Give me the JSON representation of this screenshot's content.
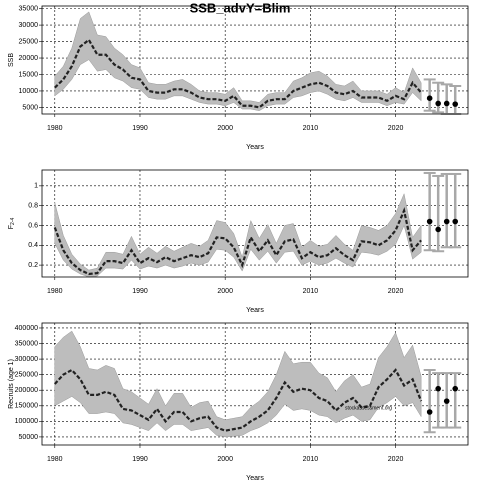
{
  "chart_data": [
    {
      "type": "line",
      "title": "SSB_advY=Blim",
      "xlabel": "Years",
      "ylabel": "SSB",
      "xlim": [
        1978.5,
        2028.5
      ],
      "xticks": [
        1980,
        1990,
        2000,
        2010,
        2020
      ],
      "ylim": [
        3000,
        35800
      ],
      "yticks": [
        5000,
        10000,
        15000,
        20000,
        25000,
        30000,
        35000
      ],
      "grid": true,
      "line_color": "#222222",
      "band_color": "#bdbdbd",
      "bar_color": "#a8a8a8",
      "x": [
        1980,
        1981,
        1982,
        1983,
        1984,
        1985,
        1986,
        1987,
        1988,
        1989,
        1990,
        1991,
        1992,
        1993,
        1994,
        1995,
        1996,
        1997,
        1998,
        1999,
        2000,
        2001,
        2002,
        2003,
        2004,
        2005,
        2006,
        2007,
        2008,
        2009,
        2010,
        2011,
        2012,
        2013,
        2014,
        2015,
        2016,
        2017,
        2018,
        2019,
        2020,
        2021,
        2022,
        2023
      ],
      "values": [
        11000,
        13500,
        17500,
        23500,
        25500,
        21000,
        21000,
        18000,
        16500,
        14000,
        13500,
        10000,
        9500,
        9500,
        10500,
        10500,
        9500,
        8000,
        7500,
        7500,
        7000,
        8500,
        5500,
        5500,
        5000,
        7000,
        7500,
        7500,
        10000,
        11000,
        12000,
        12500,
        11500,
        9500,
        9000,
        10000,
        8000,
        8000,
        8000,
        7000,
        8500,
        7500,
        12500,
        9500
      ],
      "lower": [
        8500,
        10500,
        13500,
        18000,
        19500,
        16000,
        16500,
        14000,
        13000,
        11000,
        10500,
        8000,
        7500,
        7500,
        8500,
        8500,
        7500,
        6500,
        6000,
        6000,
        5500,
        6500,
        4500,
        4500,
        4000,
        5500,
        6000,
        6000,
        8000,
        8500,
        9500,
        10000,
        9000,
        7500,
        7000,
        8000,
        6500,
        6500,
        6500,
        5500,
        6500,
        6000,
        9500,
        7000
      ],
      "upper": [
        14500,
        17500,
        23000,
        32000,
        34000,
        27000,
        26500,
        23000,
        21000,
        18000,
        17000,
        12500,
        12000,
        12000,
        13000,
        13500,
        12000,
        10000,
        9500,
        9500,
        9000,
        11000,
        7000,
        7000,
        6500,
        9000,
        9500,
        9500,
        13000,
        14000,
        15500,
        16000,
        14500,
        12000,
        11500,
        13000,
        10000,
        10000,
        10000,
        9000,
        11000,
        9500,
        17000,
        12500
      ],
      "projection": {
        "x": [
          2024,
          2025,
          2026,
          2027
        ],
        "values": [
          7800,
          6200,
          6200,
          6000
        ],
        "lower": [
          4000,
          3500,
          3000,
          3000
        ],
        "upper": [
          13500,
          12500,
          12000,
          11500
        ]
      }
    },
    {
      "type": "line",
      "xlabel": "Years",
      "ylabel": "F",
      "ylabel_subscript": "2-4",
      "xlim": [
        1978.5,
        2028.5
      ],
      "xticks": [
        1980,
        1990,
        2000,
        2010,
        2020
      ],
      "ylim": [
        0.08,
        1.16
      ],
      "yticks": [
        0.2,
        0.4,
        0.6,
        0.8,
        1.0
      ],
      "grid": true,
      "line_color": "#222222",
      "band_color": "#bdbdbd",
      "bar_color": "#a8a8a8",
      "x": [
        1980,
        1981,
        1982,
        1983,
        1984,
        1985,
        1986,
        1987,
        1988,
        1989,
        1990,
        1991,
        1992,
        1993,
        1994,
        1995,
        1996,
        1997,
        1998,
        1999,
        2000,
        2001,
        2002,
        2003,
        2004,
        2005,
        2006,
        2007,
        2008,
        2009,
        2010,
        2011,
        2012,
        2013,
        2014,
        2015,
        2016,
        2017,
        2018,
        2019,
        2020,
        2021,
        2022,
        2023
      ],
      "values": [
        0.58,
        0.35,
        0.22,
        0.15,
        0.11,
        0.12,
        0.24,
        0.24,
        0.22,
        0.35,
        0.22,
        0.27,
        0.23,
        0.28,
        0.24,
        0.27,
        0.3,
        0.28,
        0.32,
        0.48,
        0.47,
        0.38,
        0.2,
        0.48,
        0.34,
        0.45,
        0.3,
        0.44,
        0.46,
        0.27,
        0.33,
        0.28,
        0.3,
        0.37,
        0.3,
        0.25,
        0.44,
        0.43,
        0.4,
        0.45,
        0.55,
        0.75,
        0.35,
        0.45
      ],
      "lower": [
        0.42,
        0.25,
        0.16,
        0.11,
        0.08,
        0.09,
        0.17,
        0.17,
        0.16,
        0.25,
        0.16,
        0.19,
        0.17,
        0.2,
        0.17,
        0.19,
        0.22,
        0.2,
        0.23,
        0.36,
        0.35,
        0.28,
        0.14,
        0.36,
        0.25,
        0.34,
        0.22,
        0.33,
        0.34,
        0.2,
        0.24,
        0.2,
        0.22,
        0.27,
        0.22,
        0.18,
        0.33,
        0.32,
        0.3,
        0.34,
        0.41,
        0.6,
        0.26,
        0.33
      ],
      "upper": [
        0.83,
        0.5,
        0.31,
        0.21,
        0.15,
        0.17,
        0.33,
        0.33,
        0.31,
        0.49,
        0.31,
        0.38,
        0.32,
        0.39,
        0.34,
        0.38,
        0.42,
        0.39,
        0.45,
        0.65,
        0.63,
        0.52,
        0.28,
        0.65,
        0.47,
        0.61,
        0.42,
        0.6,
        0.62,
        0.38,
        0.45,
        0.39,
        0.41,
        0.5,
        0.41,
        0.35,
        0.6,
        0.58,
        0.55,
        0.6,
        0.72,
        0.92,
        0.48,
        0.6
      ],
      "projection": {
        "x": [
          2024,
          2025,
          2026,
          2027
        ],
        "values": [
          0.64,
          0.56,
          0.64,
          0.64
        ],
        "lower": [
          0.35,
          0.34,
          0.38,
          0.38
        ],
        "upper": [
          1.13,
          1.1,
          1.12,
          1.12
        ]
      }
    },
    {
      "type": "line",
      "xlabel": "Years",
      "ylabel": "Recruits (age 1)",
      "annotation": "stockassessment.org",
      "xlim": [
        1978.5,
        2028.5
      ],
      "xticks": [
        1980,
        1990,
        2000,
        2010,
        2020
      ],
      "ylim": [
        24000,
        416000
      ],
      "yticks": [
        50000,
        100000,
        150000,
        200000,
        250000,
        300000,
        350000,
        400000
      ],
      "grid": true,
      "line_color": "#222222",
      "band_color": "#bdbdbd",
      "bar_color": "#a8a8a8",
      "x": [
        1980,
        1981,
        1982,
        1983,
        1984,
        1985,
        1986,
        1987,
        1988,
        1989,
        1990,
        1991,
        1992,
        1993,
        1994,
        1995,
        1996,
        1997,
        1998,
        1999,
        2000,
        2001,
        2002,
        2003,
        2004,
        2005,
        2006,
        2007,
        2008,
        2009,
        2010,
        2011,
        2012,
        2013,
        2014,
        2015,
        2016,
        2017,
        2018,
        2019,
        2020,
        2021,
        2022,
        2023
      ],
      "values": [
        220000,
        250000,
        265000,
        235000,
        185000,
        185000,
        195000,
        185000,
        140000,
        135000,
        120000,
        105000,
        140000,
        100000,
        130000,
        130000,
        100000,
        110000,
        115000,
        80000,
        70000,
        75000,
        80000,
        100000,
        115000,
        135000,
        175000,
        225000,
        195000,
        205000,
        200000,
        175000,
        165000,
        135000,
        160000,
        175000,
        145000,
        150000,
        210000,
        235000,
        265000,
        215000,
        235000,
        165000
      ],
      "lower": [
        150000,
        165000,
        180000,
        160000,
        125000,
        125000,
        130000,
        125000,
        95000,
        90000,
        80000,
        70000,
        95000,
        70000,
        90000,
        90000,
        70000,
        75000,
        80000,
        55000,
        50000,
        52000,
        55000,
        70000,
        80000,
        95000,
        120000,
        155000,
        135000,
        140000,
        135000,
        120000,
        115000,
        95000,
        110000,
        120000,
        100000,
        105000,
        145000,
        160000,
        180000,
        150000,
        160000,
        115000
      ],
      "upper": [
        340000,
        370000,
        390000,
        340000,
        270000,
        265000,
        280000,
        270000,
        205000,
        195000,
        175000,
        155000,
        205000,
        150000,
        190000,
        190000,
        145000,
        160000,
        165000,
        115000,
        105000,
        110000,
        115000,
        145000,
        165000,
        195000,
        250000,
        325000,
        285000,
        290000,
        290000,
        255000,
        240000,
        195000,
        230000,
        250000,
        210000,
        220000,
        305000,
        340000,
        385000,
        305000,
        345000,
        245000
      ],
      "projection": {
        "x": [
          2024,
          2025,
          2026,
          2027
        ],
        "values": [
          130000,
          205000,
          165000,
          205000
        ],
        "lower": [
          65000,
          80000,
          80000,
          80000
        ],
        "upper": [
          265000,
          255000,
          255000,
          255000
        ]
      }
    }
  ]
}
